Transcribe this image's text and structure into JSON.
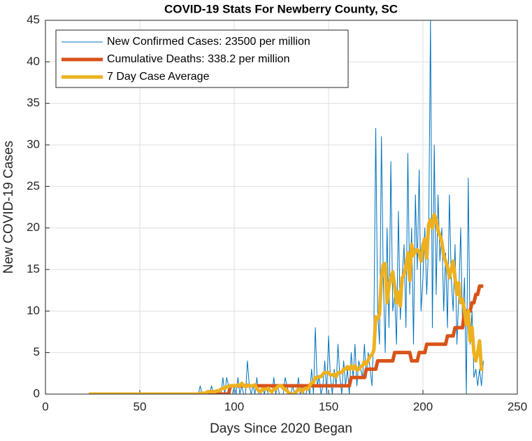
{
  "chart_data": {
    "type": "line",
    "title": "COVID-19 Stats For Newberry County, SC",
    "x_label": "Days Since 2020 Began",
    "y_label": "New COVID-19 Cases",
    "xlim": [
      0,
      250
    ],
    "xticks": [
      0,
      50,
      100,
      150,
      200,
      250
    ],
    "ylim": [
      0,
      45
    ],
    "yticks": [
      0,
      5,
      10,
      15,
      20,
      25,
      30,
      35,
      40,
      45
    ],
    "grid": true,
    "legend": "northwest",
    "x": [
      23,
      24,
      25,
      26,
      27,
      28,
      29,
      30,
      31,
      32,
      33,
      34,
      35,
      36,
      37,
      38,
      39,
      40,
      41,
      42,
      43,
      44,
      45,
      46,
      47,
      48,
      49,
      50,
      51,
      52,
      53,
      54,
      55,
      56,
      57,
      58,
      59,
      60,
      61,
      62,
      63,
      64,
      65,
      66,
      67,
      68,
      69,
      70,
      71,
      72,
      73,
      74,
      75,
      76,
      77,
      78,
      79,
      80,
      81,
      82,
      83,
      84,
      85,
      86,
      87,
      88,
      89,
      90,
      91,
      92,
      93,
      94,
      95,
      96,
      97,
      98,
      99,
      100,
      101,
      102,
      103,
      104,
      105,
      106,
      107,
      108,
      109,
      110,
      111,
      112,
      113,
      114,
      115,
      116,
      117,
      118,
      119,
      120,
      121,
      122,
      123,
      124,
      125,
      126,
      127,
      128,
      129,
      130,
      131,
      132,
      133,
      134,
      135,
      136,
      137,
      138,
      139,
      140,
      141,
      142,
      143,
      144,
      145,
      146,
      147,
      148,
      149,
      150,
      151,
      152,
      153,
      154,
      155,
      156,
      157,
      158,
      159,
      160,
      161,
      162,
      163,
      164,
      165,
      166,
      167,
      168,
      169,
      170,
      171,
      172,
      173,
      174,
      175,
      176,
      177,
      178,
      179,
      180,
      181,
      182,
      183,
      184,
      185,
      186,
      187,
      188,
      189,
      190,
      191,
      192,
      193,
      194,
      195,
      196,
      197,
      198,
      199,
      200,
      201,
      202,
      203,
      204,
      205,
      206,
      207,
      208,
      209,
      210,
      211,
      212,
      213,
      214,
      215,
      216,
      217,
      218,
      219,
      220,
      221,
      222,
      223,
      224,
      225,
      226,
      227,
      228,
      229,
      230,
      231,
      232
    ],
    "series": [
      {
        "name": "New Confirmed Cases: 23500 per million",
        "color": "#0072BD",
        "width": 1,
        "values": [
          0,
          0,
          0,
          0,
          0,
          0,
          0,
          0,
          0,
          0,
          0,
          0,
          0,
          0,
          0,
          0,
          0,
          0,
          0,
          0,
          0,
          0,
          0,
          0,
          0,
          0,
          0,
          0,
          0,
          0,
          0,
          0,
          0,
          0,
          0,
          0,
          0,
          0,
          0,
          0,
          0,
          0,
          0,
          0,
          0,
          0,
          0,
          0,
          0,
          0,
          0,
          0,
          0,
          0,
          0,
          0,
          0,
          0,
          0,
          1,
          0,
          0,
          0,
          0,
          0,
          1,
          0,
          0,
          0,
          0,
          0,
          2,
          0,
          2,
          1,
          0,
          0,
          1,
          0,
          2,
          0,
          1,
          0,
          0,
          4,
          1,
          0,
          1,
          0,
          2,
          0,
          0,
          1,
          0,
          1,
          0,
          0,
          0,
          2,
          0,
          1,
          0,
          0,
          0,
          2,
          1,
          0,
          0,
          1,
          0,
          0,
          2,
          0,
          1,
          0,
          0,
          1,
          0,
          3,
          0,
          8,
          1,
          2,
          0,
          1,
          4,
          0,
          7,
          2,
          0,
          3,
          1,
          6,
          2,
          0,
          4,
          1,
          3,
          0,
          5,
          2,
          6,
          1,
          4,
          3,
          2,
          6,
          2,
          5,
          3,
          1,
          8,
          32,
          10,
          6,
          31,
          14,
          5,
          20,
          8,
          28,
          10,
          12,
          6,
          22,
          9,
          14,
          18,
          8,
          29,
          12,
          20,
          6,
          24,
          15,
          27,
          10,
          14,
          20,
          12,
          18,
          45,
          8,
          30,
          12,
          24,
          16,
          20,
          10,
          17,
          8,
          24,
          14,
          10,
          18,
          6,
          12,
          20,
          8,
          14,
          0,
          26,
          6,
          10,
          2,
          3,
          1,
          3,
          1,
          4
        ]
      },
      {
        "name": "Cumulative Deaths: 338.2 per million",
        "color": "#D95319",
        "width": 5,
        "values": [
          0,
          0,
          0,
          0,
          0,
          0,
          0,
          0,
          0,
          0,
          0,
          0,
          0,
          0,
          0,
          0,
          0,
          0,
          0,
          0,
          0,
          0,
          0,
          0,
          0,
          0,
          0,
          0,
          0,
          0,
          0,
          0,
          0,
          0,
          0,
          0,
          0,
          0,
          0,
          0,
          0,
          0,
          0,
          0,
          0,
          0,
          0,
          0,
          0,
          0,
          0,
          0,
          0,
          0,
          0,
          0,
          0,
          0,
          0,
          0,
          0,
          0,
          0,
          0,
          0,
          0,
          0,
          0,
          0,
          0,
          0,
          0,
          0,
          0,
          0,
          1,
          1,
          1,
          1,
          1,
          1,
          1,
          1,
          1,
          1,
          1,
          1,
          1,
          1,
          1,
          1,
          1,
          1,
          1,
          1,
          1,
          1,
          1,
          1,
          1,
          1,
          1,
          1,
          1,
          1,
          1,
          1,
          1,
          1,
          1,
          1,
          1,
          1,
          1,
          1,
          1,
          1,
          1,
          1,
          1,
          1,
          1,
          1,
          1,
          1,
          1,
          1,
          1,
          1,
          1,
          1,
          1,
          1,
          1,
          1,
          1,
          1,
          1,
          1,
          2,
          2,
          2,
          2,
          2,
          2,
          2,
          2,
          3,
          3,
          3,
          3,
          3,
          3,
          4,
          4,
          4,
          4,
          4,
          4,
          4,
          4,
          4,
          5,
          5,
          5,
          5,
          5,
          5,
          5,
          5,
          5,
          4,
          4,
          4,
          4,
          5,
          5,
          5,
          5,
          6,
          6,
          6,
          6,
          6,
          6,
          6,
          6,
          6,
          6,
          6,
          7,
          7,
          7,
          7,
          8,
          8,
          8,
          8,
          8,
          10,
          10,
          10,
          10,
          11,
          11,
          12,
          12,
          13,
          13,
          13
        ]
      },
      {
        "name": "7 Day Case Average",
        "color": "#EDB120",
        "width": 5,
        "values": [
          0,
          0,
          0,
          0,
          0,
          0,
          0,
          0,
          0,
          0,
          0,
          0,
          0,
          0,
          0,
          0,
          0,
          0,
          0,
          0,
          0,
          0,
          0,
          0,
          0,
          0,
          0,
          0,
          0,
          0,
          0,
          0,
          0,
          0,
          0,
          0,
          0,
          0,
          0,
          0,
          0,
          0,
          0,
          0,
          0,
          0,
          0,
          0,
          0,
          0,
          0,
          0,
          0,
          0,
          0,
          0,
          0,
          0,
          0,
          0.1,
          0.1,
          0.1,
          0.1,
          0.3,
          0.3,
          0.3,
          0.3,
          0.3,
          0.4,
          0.4,
          0.6,
          0.7,
          0.7,
          0.9,
          0.9,
          1,
          1,
          1,
          1,
          1.1,
          1,
          1.3,
          1,
          0.9,
          1.1,
          1,
          1,
          1,
          1.1,
          0.7,
          0.4,
          0.3,
          0.6,
          0.6,
          0.6,
          0.7,
          0.4,
          0.3,
          0.6,
          0.6,
          0.9,
          1,
          1,
          0.7,
          0.6,
          0.4,
          0.1,
          0,
          0,
          0,
          0.3,
          0.6,
          0.6,
          0.3,
          0.6,
          0.7,
          0.6,
          1,
          1.4,
          1.4,
          2,
          2,
          2.1,
          2.1,
          2.4,
          2.6,
          2.6,
          2.6,
          2.3,
          2.3,
          2.4,
          2.1,
          2.6,
          2.6,
          2.6,
          3,
          3,
          3.3,
          3,
          3.4,
          3,
          3.4,
          2.9,
          3,
          3.3,
          3.4,
          3.9,
          3.6,
          4.1,
          4.6,
          4.7,
          5.3,
          9.3,
          9,
          9.6,
          14,
          15.6,
          15.7,
          11,
          13,
          14,
          14.7,
          13,
          11,
          12.3,
          10.6,
          14,
          14.4,
          15.4,
          17,
          13.7,
          18,
          16.7,
          17.3,
          17.4,
          17,
          16,
          18,
          18.7,
          16.4,
          20.4,
          21,
          20,
          21.6,
          21,
          19.7,
          19.1,
          18.3,
          16.7,
          16,
          15.3,
          14,
          15,
          16,
          14,
          12,
          13.4,
          11,
          11.4,
          10,
          8.4,
          10,
          6.4,
          8,
          5,
          4,
          5,
          6.4,
          3,
          3
        ]
      }
    ]
  }
}
